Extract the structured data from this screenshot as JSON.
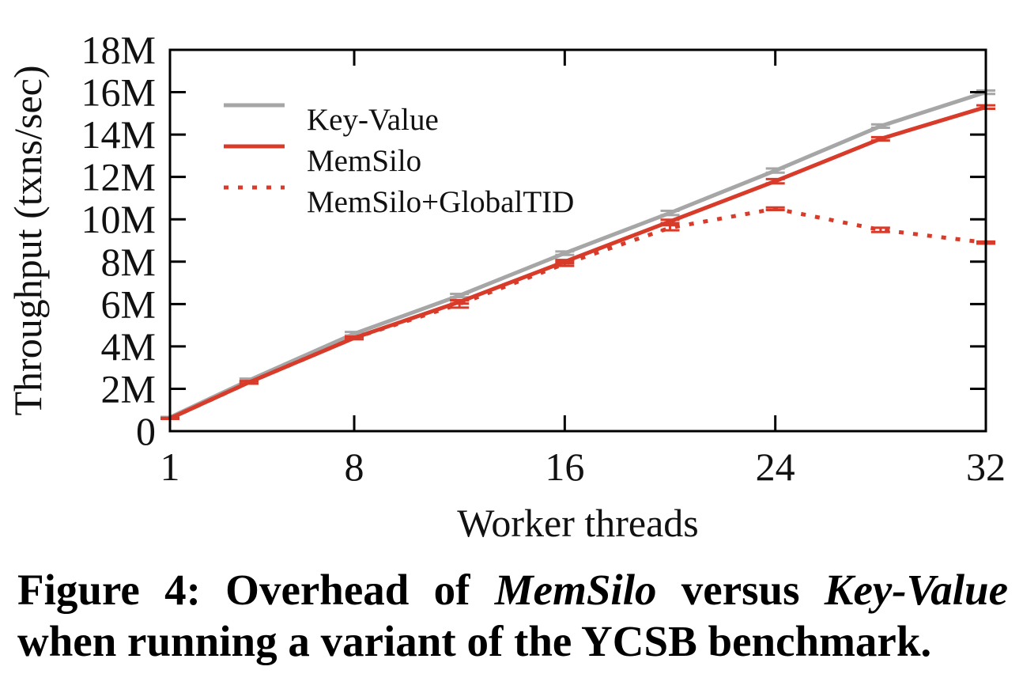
{
  "chart_data": {
    "type": "line",
    "title": "",
    "xlabel": "Worker threads",
    "ylabel": "Throughput (txns/sec)",
    "x": [
      1,
      4,
      8,
      12,
      16,
      20,
      24,
      28,
      32
    ],
    "xlim": [
      1,
      32
    ],
    "xticks": [
      1,
      8,
      16,
      24,
      32
    ],
    "x_tick_labels": [
      "1",
      "8",
      "16",
      "24",
      "32"
    ],
    "ylim": [
      0,
      18
    ],
    "yticks": [
      0,
      2,
      4,
      6,
      8,
      10,
      12,
      14,
      16,
      18
    ],
    "y_tick_labels": [
      "0",
      "2M",
      "4M",
      "6M",
      "8M",
      "10M",
      "12M",
      "14M",
      "16M",
      "18M"
    ],
    "grid": false,
    "legend_position": "top-left",
    "series": [
      {
        "name": "Key-Value",
        "color": "#a6a6a6",
        "dotted": false,
        "values": [
          0.65,
          2.4,
          4.6,
          6.4,
          8.4,
          10.3,
          12.3,
          14.4,
          16.0
        ],
        "err": [
          0.02,
          0.08,
          0.08,
          0.08,
          0.08,
          0.1,
          0.1,
          0.08,
          0.08
        ]
      },
      {
        "name": "MemSilo",
        "color": "#d83b2a",
        "dotted": false,
        "values": [
          0.6,
          2.3,
          4.4,
          6.1,
          8.0,
          9.9,
          11.8,
          13.8,
          15.3
        ],
        "err": [
          0.02,
          0.06,
          0.06,
          0.08,
          0.08,
          0.08,
          0.1,
          0.08,
          0.08
        ]
      },
      {
        "name": "MemSilo+GlobalTID",
        "color": "#d83b2a",
        "dotted": true,
        "values": [
          0.6,
          2.3,
          4.4,
          6.0,
          7.9,
          9.6,
          10.5,
          9.5,
          8.9
        ],
        "err": [
          0.02,
          0.06,
          0.06,
          0.17,
          0.1,
          0.12,
          0.06,
          0.1,
          0.05
        ]
      }
    ]
  },
  "caption": {
    "label": "Figure 4:",
    "text1": "Overhead of",
    "emph1": "MemSilo",
    "text2": "versus",
    "emph2": "Key-Value",
    "line2": "when running a variant of the YCSB benchmark."
  }
}
